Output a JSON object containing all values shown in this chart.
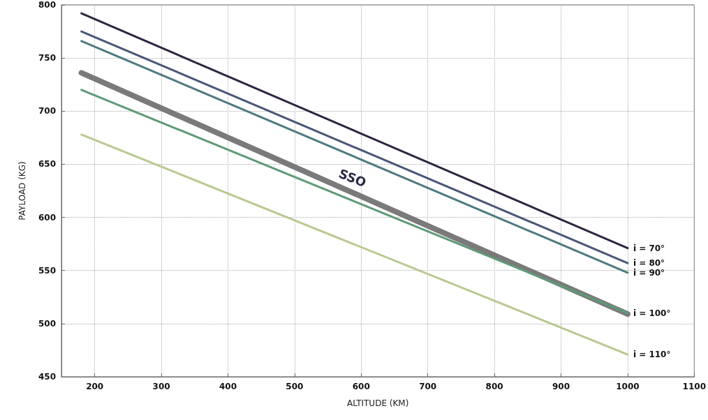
{
  "chart_data": {
    "type": "line",
    "xlabel": "ALTITUDE (KM)",
    "ylabel": "PAYLOAD (KG)",
    "xlim": [
      150,
      1100
    ],
    "xticks": [
      200,
      300,
      400,
      500,
      600,
      700,
      800,
      900,
      1000,
      1100
    ],
    "ylim": [
      450,
      800
    ],
    "yticks": [
      450,
      500,
      550,
      600,
      650,
      700,
      750,
      800
    ],
    "grid": true,
    "legend": false,
    "marker": "none",
    "line_style": "solid",
    "x": [
      180,
      1000
    ],
    "series": [
      {
        "name": "i = 70°",
        "color": "#2e2440",
        "values": [
          792,
          571
        ]
      },
      {
        "name": "i = 80°",
        "color": "#4a5578",
        "values": [
          775,
          557
        ]
      },
      {
        "name": "i = 90°",
        "color": "#4d7a80",
        "values": [
          766,
          548
        ]
      },
      {
        "color": "#7a7a7a",
        "values": [
          736,
          509
        ]
      },
      {
        "name": "i = 100°",
        "color": "#5e9a78",
        "values": [
          720,
          510
        ]
      },
      {
        "name": "i = 110°",
        "color": "#b8c890",
        "values": [
          678,
          471
        ]
      }
    ],
    "annotations": [
      "SSO"
    ]
  }
}
